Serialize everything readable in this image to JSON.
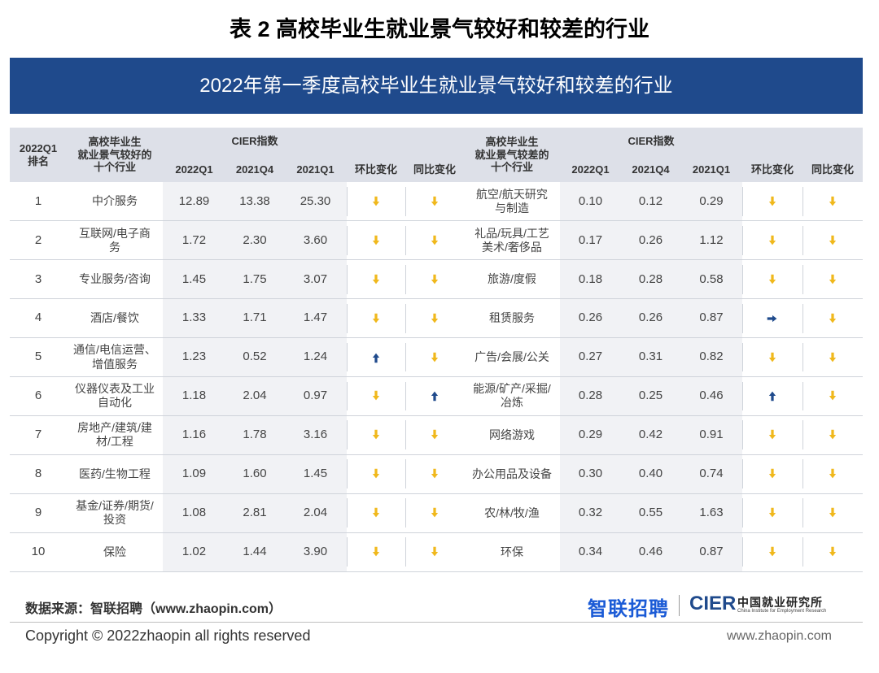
{
  "page_title": "表 2  高校毕业生就业景气较好和较差的行业",
  "banner_title": "2022年第一季度高校毕业生就业景气较好和较差的行业",
  "table": {
    "headers": {
      "rank": "2022Q1\n排名",
      "good_industry": "高校毕业生\n就业景气较好的\n十个行业",
      "good_cier": "CIER指数",
      "bad_industry": "高校毕业生\n就业景气较差的\n十个行业",
      "bad_cier": "CIER指数",
      "q1_2022": "2022Q1",
      "q4_2021": "2021Q4",
      "q1_2021": "2021Q1",
      "qoq": "环比变化",
      "yoy": "同比变化"
    },
    "trend_icons": {
      "down": "down-arrow-icon",
      "up": "up-arrow-icon",
      "flat": "right-arrow-icon"
    },
    "colors": {
      "down": "#f0b81c",
      "up": "#1f4a8c",
      "flat": "#1f4a8c"
    },
    "rows": [
      {
        "rank": "1",
        "good": "中介服务",
        "g22q1": "12.89",
        "g21q4": "13.38",
        "g21q1": "25.30",
        "g_qoq": "down",
        "g_yoy": "down",
        "bad": "航空/航天研究\n与制造",
        "b22q1": "0.10",
        "b21q4": "0.12",
        "b21q1": "0.29",
        "b_qoq": "down",
        "b_yoy": "down"
      },
      {
        "rank": "2",
        "good": "互联网/电子商\n务",
        "g22q1": "1.72",
        "g21q4": "2.30",
        "g21q1": "3.60",
        "g_qoq": "down",
        "g_yoy": "down",
        "bad": "礼品/玩具/工艺\n美术/奢侈品",
        "b22q1": "0.17",
        "b21q4": "0.26",
        "b21q1": "1.12",
        "b_qoq": "down",
        "b_yoy": "down"
      },
      {
        "rank": "3",
        "good": "专业服务/咨询",
        "g22q1": "1.45",
        "g21q4": "1.75",
        "g21q1": "3.07",
        "g_qoq": "down",
        "g_yoy": "down",
        "bad": "旅游/度假",
        "b22q1": "0.18",
        "b21q4": "0.28",
        "b21q1": "0.58",
        "b_qoq": "down",
        "b_yoy": "down"
      },
      {
        "rank": "4",
        "good": "酒店/餐饮",
        "g22q1": "1.33",
        "g21q4": "1.71",
        "g21q1": "1.47",
        "g_qoq": "down",
        "g_yoy": "down",
        "bad": "租赁服务",
        "b22q1": "0.26",
        "b21q4": "0.26",
        "b21q1": "0.87",
        "b_qoq": "flat",
        "b_yoy": "down"
      },
      {
        "rank": "5",
        "good": "通信/电信运营、\n增值服务",
        "g22q1": "1.23",
        "g21q4": "0.52",
        "g21q1": "1.24",
        "g_qoq": "up",
        "g_yoy": "down",
        "bad": "广告/会展/公关",
        "b22q1": "0.27",
        "b21q4": "0.31",
        "b21q1": "0.82",
        "b_qoq": "down",
        "b_yoy": "down"
      },
      {
        "rank": "6",
        "good": "仪器仪表及工业\n自动化",
        "g22q1": "1.18",
        "g21q4": "2.04",
        "g21q1": "0.97",
        "g_qoq": "down",
        "g_yoy": "up",
        "bad": "能源/矿产/采掘/\n冶炼",
        "b22q1": "0.28",
        "b21q4": "0.25",
        "b21q1": "0.46",
        "b_qoq": "up",
        "b_yoy": "down"
      },
      {
        "rank": "7",
        "good": "房地产/建筑/建\n材/工程",
        "g22q1": "1.16",
        "g21q4": "1.78",
        "g21q1": "3.16",
        "g_qoq": "down",
        "g_yoy": "down",
        "bad": "网络游戏",
        "b22q1": "0.29",
        "b21q4": "0.42",
        "b21q1": "0.91",
        "b_qoq": "down",
        "b_yoy": "down"
      },
      {
        "rank": "8",
        "good": "医药/生物工程",
        "g22q1": "1.09",
        "g21q4": "1.60",
        "g21q1": "1.45",
        "g_qoq": "down",
        "g_yoy": "down",
        "bad": "办公用品及设备",
        "b22q1": "0.30",
        "b21q4": "0.40",
        "b21q1": "0.74",
        "b_qoq": "down",
        "b_yoy": "down"
      },
      {
        "rank": "9",
        "good": "基金/证券/期货/\n投资",
        "g22q1": "1.08",
        "g21q4": "2.81",
        "g21q1": "2.04",
        "g_qoq": "down",
        "g_yoy": "down",
        "bad": "农/林/牧/渔",
        "b22q1": "0.32",
        "b21q4": "0.55",
        "b21q1": "1.63",
        "b_qoq": "down",
        "b_yoy": "down"
      },
      {
        "rank": "10",
        "good": "保险",
        "g22q1": "1.02",
        "g21q4": "1.44",
        "g21q1": "3.90",
        "g_qoq": "down",
        "g_yoy": "down",
        "bad": "环保",
        "b22q1": "0.34",
        "b21q4": "0.46",
        "b21q1": "0.87",
        "b_qoq": "down",
        "b_yoy": "down"
      }
    ]
  },
  "footer": {
    "source": "数据来源：智联招聘（www.zhaopin.com）",
    "copyright": "Copyright ©  2022zhaopin all rights reserved",
    "website": "www.zhaopin.com",
    "logo_zhaopin": "智联招聘",
    "logo_cier": "CIER",
    "logo_cier_cn": "中国就业研究所",
    "logo_cier_en": "China Institute for Employment Research"
  }
}
